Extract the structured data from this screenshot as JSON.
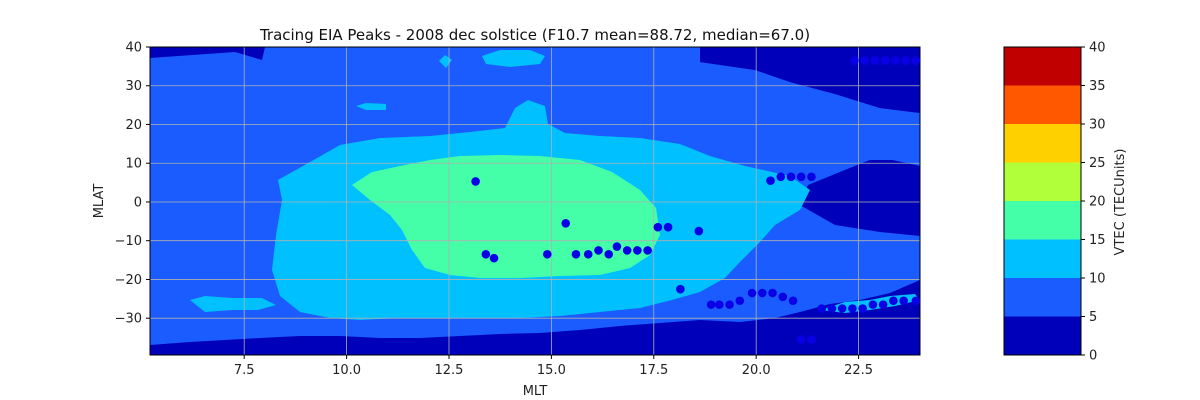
{
  "chart_data": {
    "type": "contour",
    "title": "Tracing EIA Peaks - 2008 dec solstice (F10.7 mean=88.72, median=67.0)",
    "xlabel": "MLT",
    "ylabel": "MLAT",
    "xlim": [
      5.2,
      24.0
    ],
    "ylim": [
      -39.5,
      40
    ],
    "xticks": [
      7.5,
      10.0,
      12.5,
      15.0,
      17.5,
      20.0,
      22.5
    ],
    "xtick_labels": [
      "7.5",
      "10.0",
      "12.5",
      "15.0",
      "17.5",
      "20.0",
      "22.5"
    ],
    "yticks": [
      -30,
      -20,
      -10,
      0,
      10,
      20,
      30,
      40
    ],
    "ytick_labels": [
      "−30",
      "−20",
      "−10",
      "0",
      "10",
      "20",
      "30",
      "40"
    ],
    "grid": true,
    "colorbar": {
      "label": "VTEC (TECUnits)",
      "levels": [
        0,
        5,
        10,
        15,
        20,
        25,
        30,
        35,
        40
      ],
      "tick_labels": [
        "0",
        "5",
        "10",
        "15",
        "20",
        "25",
        "30",
        "35",
        "40"
      ],
      "colors": [
        "#0000bb",
        "#1a5cff",
        "#00c0ff",
        "#44ffa8",
        "#b0ff3a",
        "#ffd000",
        "#ff5800",
        "#c00000"
      ]
    },
    "contour_regions": [
      {
        "level_min": 0,
        "level_max": 5,
        "description_color": "#0000bb"
      },
      {
        "level_min": 5,
        "level_max": 10,
        "description_color": "#1a5cff"
      },
      {
        "level_min": 10,
        "level_max": 15,
        "description_color": "#00c0ff"
      },
      {
        "level_min": 15,
        "level_max": 20,
        "description_color": "#44ffa8"
      }
    ],
    "series": [
      {
        "marker": "circle",
        "color": "#0a00e6",
        "points": [
          [
            13.15,
            5.3
          ],
          [
            15.35,
            -5.5
          ],
          [
            13.4,
            -13.5
          ],
          [
            13.6,
            -14.5
          ],
          [
            14.9,
            -13.5
          ],
          [
            15.6,
            -13.5
          ],
          [
            15.9,
            -13.5
          ],
          [
            16.15,
            -12.5
          ],
          [
            16.4,
            -13.5
          ],
          [
            16.6,
            -11.5
          ],
          [
            16.85,
            -12.5
          ],
          [
            17.1,
            -12.5
          ],
          [
            17.35,
            -12.5
          ],
          [
            17.6,
            -6.5
          ],
          [
            17.85,
            -6.5
          ],
          [
            18.6,
            -7.5
          ],
          [
            18.15,
            -22.5
          ],
          [
            18.9,
            -26.5
          ],
          [
            19.1,
            -26.5
          ],
          [
            19.35,
            -26.5
          ],
          [
            19.6,
            -25.5
          ],
          [
            19.9,
            -23.5
          ],
          [
            20.15,
            -23.5
          ],
          [
            20.4,
            -23.5
          ],
          [
            20.65,
            -24.5
          ],
          [
            20.9,
            -25.5
          ],
          [
            21.1,
            -35.5
          ],
          [
            21.35,
            -35.5
          ],
          [
            21.6,
            -27.5
          ],
          [
            21.85,
            -27.5
          ],
          [
            22.1,
            -27.5
          ],
          [
            22.35,
            -27.5
          ],
          [
            22.6,
            -27.5
          ],
          [
            22.85,
            -26.5
          ],
          [
            23.1,
            -26.5
          ],
          [
            23.35,
            -25.5
          ],
          [
            23.6,
            -25.5
          ],
          [
            23.9,
            -25.5
          ],
          [
            20.35,
            5.5
          ],
          [
            20.6,
            6.5
          ],
          [
            20.85,
            6.5
          ],
          [
            21.1,
            6.5
          ],
          [
            21.35,
            6.5
          ],
          [
            22.4,
            36.5
          ],
          [
            22.65,
            36.5
          ],
          [
            22.9,
            36.5
          ],
          [
            23.15,
            36.5
          ],
          [
            23.4,
            36.5
          ],
          [
            23.65,
            36.5
          ],
          [
            23.9,
            36.5
          ]
        ]
      }
    ]
  }
}
